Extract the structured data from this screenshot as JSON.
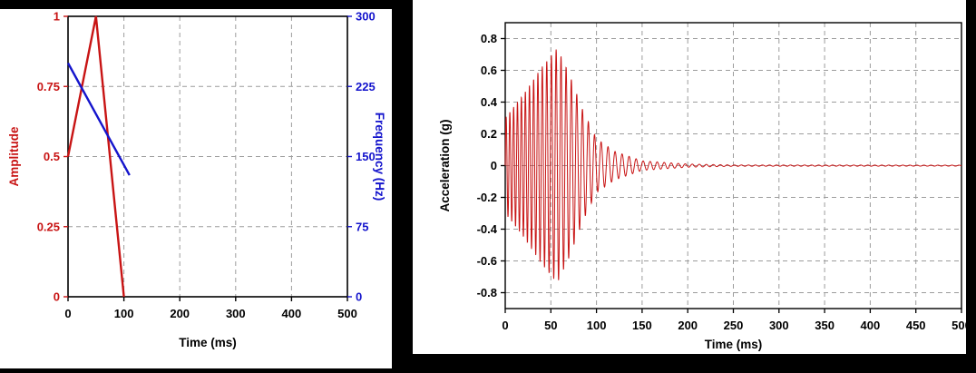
{
  "colors": {
    "background": "#000000",
    "panel": "#ffffff",
    "grid": "#9c9c9c",
    "frame": "#000000",
    "red": "#c81414",
    "blue": "#1414cc"
  },
  "chart_data": [
    {
      "type": "line",
      "id": "pulse-definition-chart",
      "title": "",
      "xlabel": "Time (ms)",
      "xlim": [
        0,
        500
      ],
      "grid": true,
      "x_ticks": [
        {
          "v": 0,
          "label": "0"
        },
        {
          "v": 100,
          "label": "100"
        },
        {
          "v": 200,
          "label": "200"
        },
        {
          "v": 300,
          "label": "300"
        },
        {
          "v": 400,
          "label": "400"
        },
        {
          "v": 500,
          "label": "500"
        }
      ],
      "left_axis": {
        "label": "Amplitude",
        "color": "#c81414",
        "lim": [
          0,
          1
        ],
        "ticks": [
          {
            "v": 0,
            "label": "0"
          },
          {
            "v": 0.25,
            "label": "0.25"
          },
          {
            "v": 0.5,
            "label": "0.5"
          },
          {
            "v": 0.75,
            "label": "0.75"
          },
          {
            "v": 1,
            "label": "1"
          }
        ]
      },
      "right_axis": {
        "label": "Frequency (Hz)",
        "color": "#1414cc",
        "lim": [
          0,
          300
        ],
        "ticks": [
          {
            "v": 0,
            "label": "0"
          },
          {
            "v": 75,
            "label": "75"
          },
          {
            "v": 150,
            "label": "150"
          },
          {
            "v": 225,
            "label": "225"
          },
          {
            "v": 300,
            "label": "300"
          }
        ]
      },
      "series": [
        {
          "name": "amplitude-envelope",
          "axis": "left",
          "color": "#c81414",
          "x": [
            0,
            50,
            100
          ],
          "y": [
            0.5,
            1,
            0
          ]
        },
        {
          "name": "frequency-sweep",
          "axis": "right",
          "color": "#1414cc",
          "x": [
            0,
            110
          ],
          "y": [
            250,
            130
          ]
        }
      ]
    },
    {
      "type": "line",
      "id": "acceleration-waveform-chart",
      "title": "",
      "xlabel": "Time (ms)",
      "ylabel": "Acceleration (g)",
      "xlim": [
        0,
        500
      ],
      "ylim": [
        -0.9,
        0.9
      ],
      "grid": true,
      "x_ticks": [
        {
          "v": 0,
          "label": "0"
        },
        {
          "v": 50,
          "label": "50"
        },
        {
          "v": 100,
          "label": "100"
        },
        {
          "v": 150,
          "label": "150"
        },
        {
          "v": 200,
          "label": "200"
        },
        {
          "v": 250,
          "label": "250"
        },
        {
          "v": 300,
          "label": "300"
        },
        {
          "v": 350,
          "label": "350"
        },
        {
          "v": 400,
          "label": "400"
        },
        {
          "v": 450,
          "label": "450"
        },
        {
          "v": 500,
          "label": "500"
        }
      ],
      "y_ticks": [
        {
          "v": -0.8,
          "label": "-0.8"
        },
        {
          "v": -0.6,
          "label": "-0.6"
        },
        {
          "v": -0.4,
          "label": "-0.4"
        },
        {
          "v": -0.2,
          "label": "-0.2"
        },
        {
          "v": 0,
          "label": "0"
        },
        {
          "v": 0.2,
          "label": "0.2"
        },
        {
          "v": 0.4,
          "label": "0.4"
        },
        {
          "v": 0.6,
          "label": "0.6"
        },
        {
          "v": 0.8,
          "label": "0.8"
        }
      ],
      "series": [
        {
          "name": "acceleration-waveform",
          "color": "#c81414",
          "signal": {
            "kind": "amplitude-modulated swept sine burst",
            "sample_step_ms": 0.2,
            "freq_start_hz": 250,
            "freq_end_hz": 130,
            "sweep_end_ms": 110,
            "envelope_t_ms": [
              0,
              20,
              40,
              57,
              70,
              85,
              100,
              120,
              150,
              200,
              250,
              500
            ],
            "envelope_g": [
              0.3,
              0.45,
              0.62,
              0.74,
              0.58,
              0.35,
              0.17,
              0.09,
              0.03,
              0.01,
              0.004,
              0.003
            ],
            "peak_g": 0.74
          }
        }
      ]
    }
  ]
}
